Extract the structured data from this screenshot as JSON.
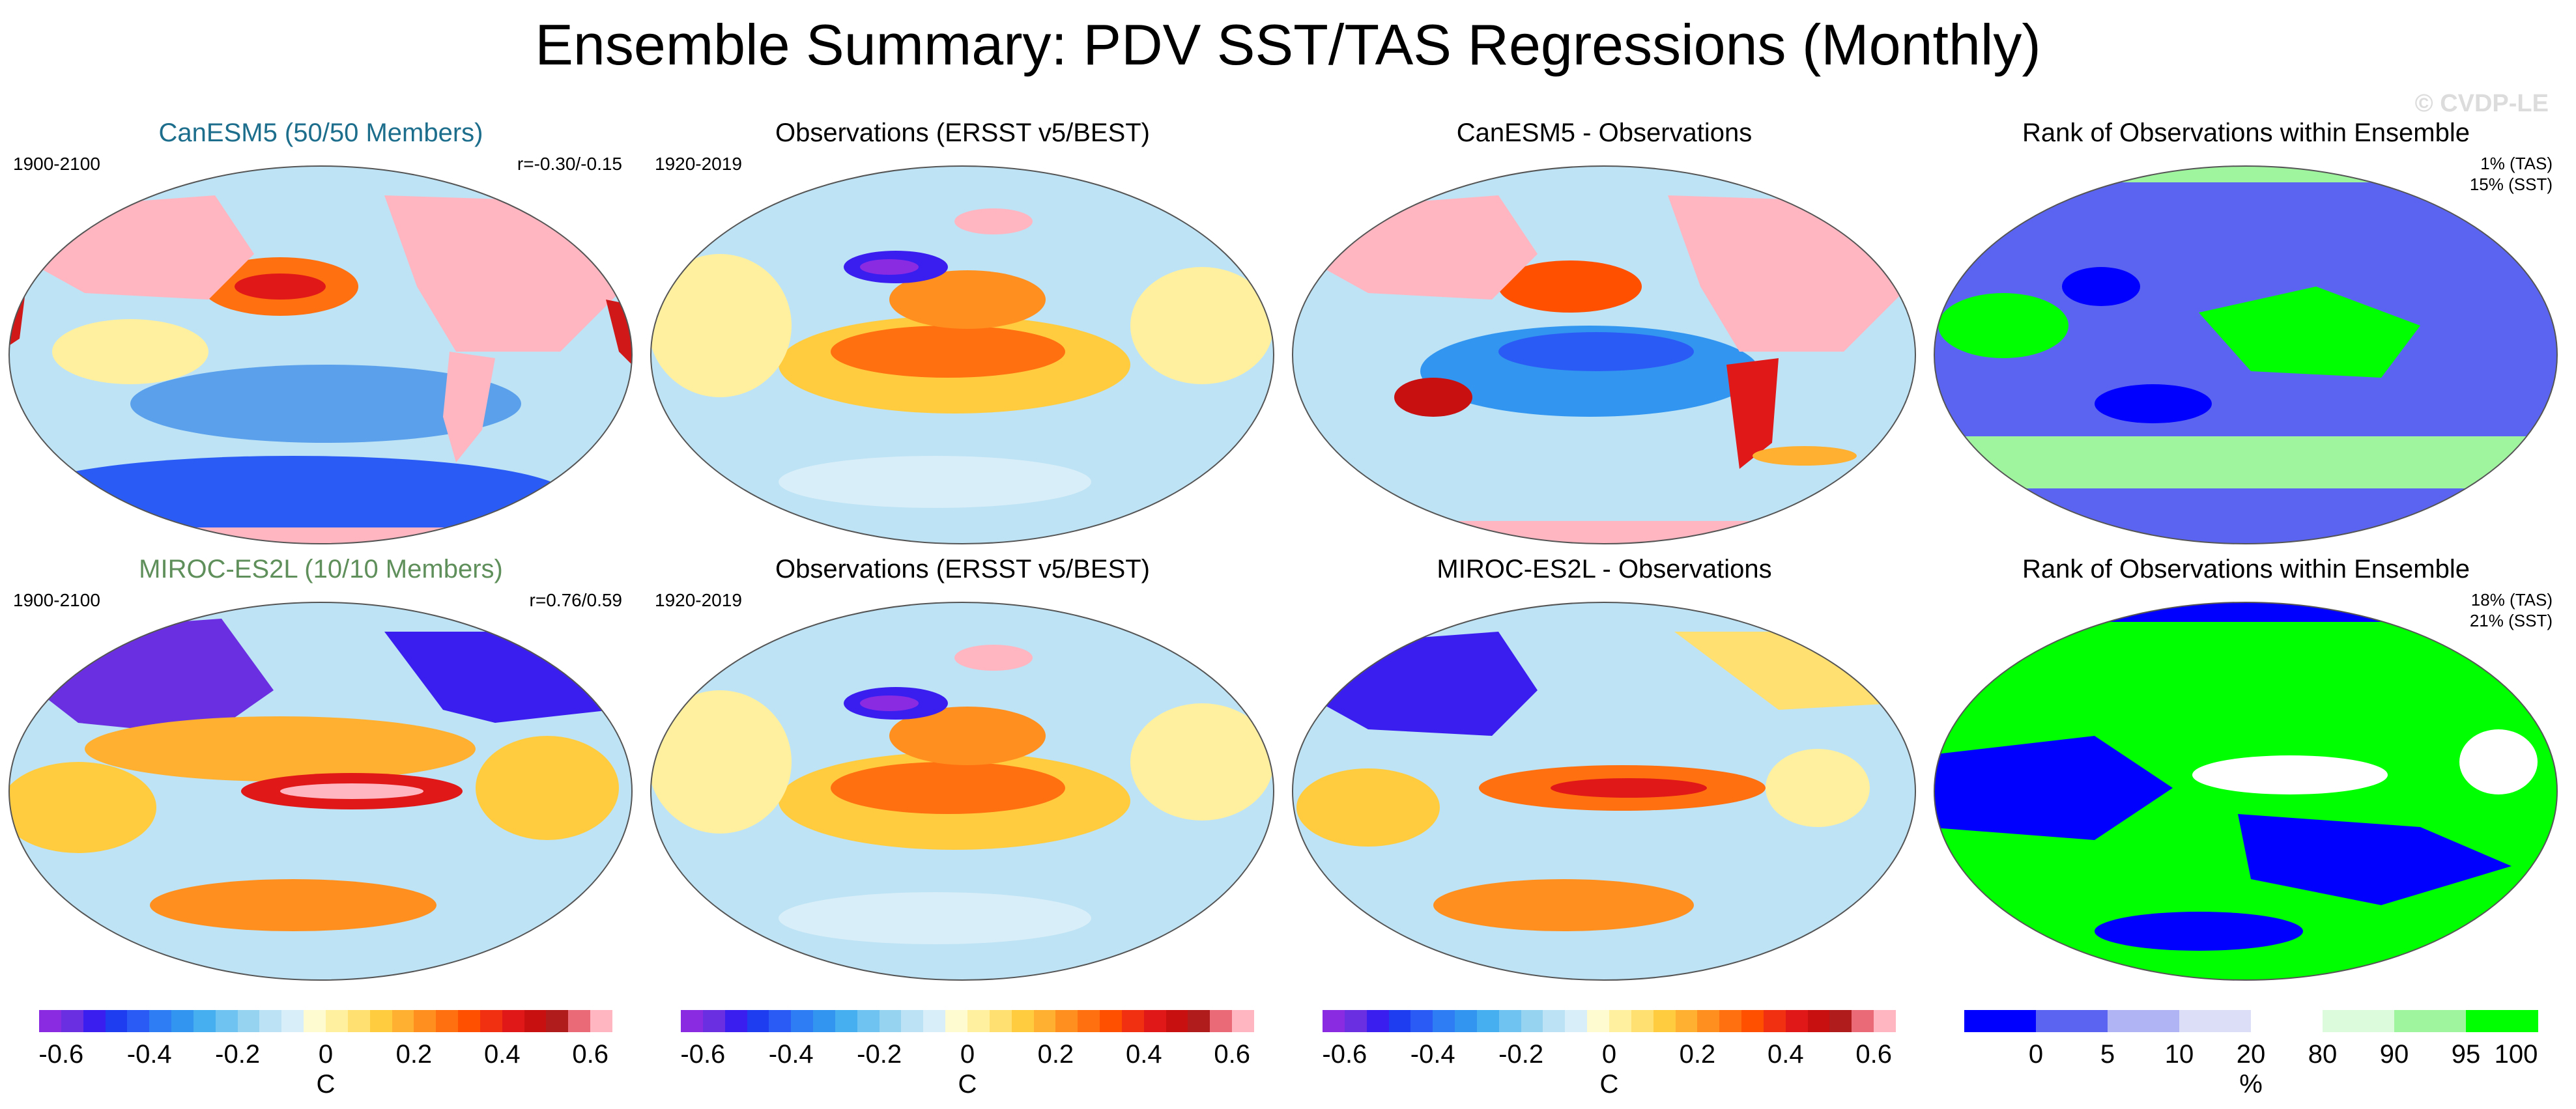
{
  "figure": {
    "title": "Ensemble Summary: PDV SST/TAS Regressions (Monthly)",
    "watermark": "© CVDP-LE"
  },
  "panels": {
    "p1": {
      "title": "CanESM5 (50/50 Members)",
      "title_color": "#1c6e8c",
      "period": "1900-2100",
      "corr": "r=-0.30/-0.15"
    },
    "p2": {
      "title": "Observations (ERSST v5/BEST)",
      "period": "1920-2019"
    },
    "p3": {
      "title": "CanESM5 - Observations"
    },
    "p4": {
      "title": "Rank of Observations within Ensemble",
      "stat1": "1% (TAS)",
      "stat2": "15% (SST)"
    },
    "p5": {
      "title": "MIROC-ES2L (10/10 Members)",
      "title_color": "#5f8f5a",
      "period": "1900-2100",
      "corr": "r=0.76/0.59"
    },
    "p6": {
      "title": "Observations (ERSST v5/BEST)",
      "period": "1920-2019"
    },
    "p7": {
      "title": "MIROC-ES2L - Observations"
    },
    "p8": {
      "title": "Rank of Observations within Ensemble",
      "stat1": "18% (TAS)",
      "stat2": "21% (SST)"
    }
  },
  "colorbars": {
    "diverging": {
      "unit": "C",
      "labels": [
        "-0.6",
        "-0.4",
        "-0.2",
        "0",
        "0.2",
        "0.4",
        "0.6"
      ],
      "colors": [
        "#8a2be2",
        "#6a2fe0",
        "#3a1ef0",
        "#1e3cf0",
        "#2a5cf5",
        "#2f7df5",
        "#3296f0",
        "#46aff0",
        "#6ec3f0",
        "#96d3f0",
        "#bce3f5",
        "#d8eef8",
        "#fffbd0",
        "#fff0a0",
        "#ffe070",
        "#ffcc40",
        "#ffb030",
        "#ff9020",
        "#ff7010",
        "#ff5000",
        "#f03010",
        "#e01818",
        "#c81010",
        "#b01c1c",
        "#ea6a78",
        "#ffb6c1"
      ]
    },
    "rank": {
      "unit": "%",
      "labels": [
        "0",
        "5",
        "10",
        "20",
        "80",
        "90",
        "95",
        "100"
      ],
      "colors": [
        "#0000ff",
        "#5a64f0",
        "#b0b4f4",
        "#dcdef8",
        "#ffffff",
        "#dcfadc",
        "#9ef59e",
        "#00ff00"
      ]
    }
  },
  "chart_data": [
    {
      "type": "heatmap",
      "title": "CanESM5 (50/50 Members)",
      "variable": "PDV SST/TAS regression",
      "units": "C",
      "period": "1900-2100",
      "correlation": "r=-0.30/-0.15",
      "range": [
        -0.7,
        0.7
      ]
    },
    {
      "type": "heatmap",
      "title": "Observations (ERSST v5/BEST)",
      "variable": "PDV SST/TAS regression",
      "units": "C",
      "period": "1920-2019",
      "range": [
        -0.7,
        0.7
      ]
    },
    {
      "type": "heatmap",
      "title": "CanESM5 - Observations",
      "variable": "difference",
      "units": "C",
      "range": [
        -0.7,
        0.7
      ]
    },
    {
      "type": "heatmap",
      "title": "Rank of Observations within Ensemble",
      "units": "%",
      "rank_TAS_percent": 1,
      "rank_SST_percent": 15,
      "levels": [
        0,
        5,
        10,
        20,
        80,
        90,
        95,
        100
      ]
    },
    {
      "type": "heatmap",
      "title": "MIROC-ES2L (10/10 Members)",
      "variable": "PDV SST/TAS regression",
      "units": "C",
      "period": "1900-2100",
      "correlation": "r=0.76/0.59",
      "range": [
        -0.7,
        0.7
      ]
    },
    {
      "type": "heatmap",
      "title": "Observations (ERSST v5/BEST)",
      "variable": "PDV SST/TAS regression",
      "units": "C",
      "period": "1920-2019",
      "range": [
        -0.7,
        0.7
      ]
    },
    {
      "type": "heatmap",
      "title": "MIROC-ES2L - Observations",
      "variable": "difference",
      "units": "C",
      "range": [
        -0.7,
        0.7
      ]
    },
    {
      "type": "heatmap",
      "title": "Rank of Observations within Ensemble",
      "units": "%",
      "rank_TAS_percent": 18,
      "rank_SST_percent": 21,
      "levels": [
        0,
        5,
        10,
        20,
        80,
        90,
        95,
        100
      ]
    }
  ]
}
